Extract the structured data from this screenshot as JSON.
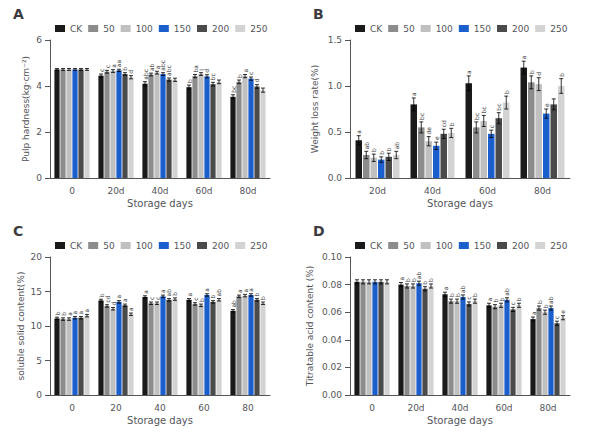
{
  "chart_data": [
    {
      "type": "bar",
      "title": "A",
      "xlabel": "Storage days",
      "ylabel": "Pulp hardness(kg·cm⁻²)",
      "categories": [
        "0",
        "20d",
        "40d",
        "60d",
        "80d"
      ],
      "ylim": [
        0,
        6
      ],
      "yticks": [
        0,
        2,
        4,
        6
      ],
      "grid": false,
      "legend": "top",
      "series": [
        {
          "name": "CK",
          "color": "#1a1a1a",
          "values": [
            4.72,
            4.45,
            4.1,
            3.95,
            3.53
          ],
          "errors": [
            0.04,
            0.07,
            0.09,
            0.09,
            0.09
          ],
          "annotations": [
            null,
            "c",
            "abc",
            "b",
            "bc"
          ]
        },
        {
          "name": "50",
          "color": "#8c8c8c",
          "values": [
            4.72,
            4.62,
            4.5,
            4.43,
            4.18
          ],
          "errors": [
            0.04,
            0.06,
            0.06,
            0.07,
            0.08
          ],
          "annotations": [
            null,
            "c",
            "ab",
            "ba",
            "b"
          ]
        },
        {
          "name": "100",
          "color": "#c0c0c0",
          "values": [
            4.72,
            4.65,
            4.58,
            4.52,
            4.43
          ],
          "errors": [
            0.04,
            0.06,
            0.06,
            0.06,
            0.07
          ],
          "annotations": [
            null,
            "a",
            "a",
            "l",
            "a"
          ]
        },
        {
          "name": "150",
          "color": "#1a5fcc",
          "values": [
            4.72,
            4.68,
            4.52,
            4.42,
            4.32
          ],
          "errors": [
            0.04,
            0.05,
            0.06,
            0.07,
            0.07
          ],
          "annotations": [
            null,
            "aa",
            "abc",
            "d",
            "c"
          ]
        },
        {
          "name": "200",
          "color": "#4a4a4a",
          "values": [
            4.72,
            4.52,
            4.28,
            4.08,
            3.98
          ],
          "errors": [
            0.04,
            0.06,
            0.07,
            0.08,
            0.08
          ],
          "annotations": [
            null,
            "b",
            "abc",
            "bc",
            "d"
          ]
        },
        {
          "name": "250",
          "color": "#d3d3d3",
          "values": [
            4.72,
            4.38,
            4.27,
            4.18,
            3.82
          ],
          "errors": [
            0.04,
            0.07,
            0.07,
            0.08,
            0.09
          ],
          "annotations": [
            null,
            "d",
            null,
            null,
            null
          ]
        }
      ]
    },
    {
      "type": "bar",
      "title": "B",
      "xlabel": "Storage days",
      "ylabel": "Weight loss rate(%)",
      "categories": [
        "20d",
        "40d",
        "60d",
        "80d"
      ],
      "ylim": [
        0.0,
        1.5
      ],
      "yticks": [
        {
          "value": 0,
          "label": "0.0"
        },
        0.5,
        {
          "value": 1,
          "label": "1.0"
        },
        1.5
      ],
      "grid": false,
      "legend": "top",
      "series": [
        {
          "name": "CK",
          "color": "#1a1a1a",
          "values": [
            0.41,
            0.8,
            1.03,
            1.2
          ],
          "errors": [
            0.05,
            0.07,
            0.08,
            0.07
          ],
          "annotations": [
            "a",
            "a",
            "a",
            "a"
          ]
        },
        {
          "name": "50",
          "color": "#8c8c8c",
          "values": [
            0.25,
            0.55,
            0.55,
            1.04
          ],
          "errors": [
            0.04,
            0.06,
            0.06,
            0.07
          ],
          "annotations": [
            "ab",
            "bc",
            "bc",
            "b"
          ]
        },
        {
          "name": "100",
          "color": "#c0c0c0",
          "values": [
            0.22,
            0.4,
            0.62,
            1.02
          ],
          "errors": [
            0.04,
            0.05,
            0.06,
            0.07
          ],
          "annotations": [
            "b",
            "de",
            "bc",
            "d"
          ]
        },
        {
          "name": "150",
          "color": "#1a5fcc",
          "values": [
            0.2,
            0.35,
            0.48,
            0.7
          ],
          "errors": [
            0.03,
            0.04,
            0.04,
            0.05
          ],
          "annotations": [
            "b",
            "e",
            "c",
            "e"
          ]
        },
        {
          "name": "200",
          "color": "#4a4a4a",
          "values": [
            0.23,
            0.48,
            0.65,
            0.8
          ],
          "errors": [
            0.04,
            0.05,
            0.06,
            0.06
          ],
          "annotations": [
            "b",
            "cd",
            "bc",
            null
          ]
        },
        {
          "name": "250",
          "color": "#d3d3d3",
          "values": [
            0.25,
            0.49,
            0.82,
            1.0
          ],
          "errors": [
            0.04,
            0.05,
            0.07,
            0.08
          ],
          "annotations": [
            "ab",
            "b",
            "b",
            "b"
          ]
        }
      ]
    },
    {
      "type": "bar",
      "title": "C",
      "xlabel": "Storage days",
      "ylabel": "soluble solid content(%)",
      "categories": [
        "0",
        "20",
        "40",
        "60",
        "80"
      ],
      "ylim": [
        0,
        20
      ],
      "yticks": [
        0,
        5,
        10,
        15,
        20
      ],
      "grid": false,
      "legend": "top",
      "series": [
        {
          "name": "CK",
          "color": "#1a1a1a",
          "values": [
            11.1,
            13.7,
            14.2,
            13.8,
            12.2
          ],
          "errors": [
            0.18,
            0.18,
            0.18,
            0.18,
            0.18
          ],
          "annotations": [
            "b",
            "b",
            "a",
            "a",
            "ab"
          ]
        },
        {
          "name": "50",
          "color": "#8c8c8c",
          "values": [
            11.0,
            12.9,
            13.3,
            13.2,
            14.3
          ],
          "errors": [
            0.18,
            0.18,
            0.18,
            0.18,
            0.18
          ],
          "annotations": [
            "b",
            "cd",
            "c",
            "c",
            "a"
          ]
        },
        {
          "name": "100",
          "color": "#c0c0c0",
          "values": [
            11.0,
            12.5,
            13.3,
            13.0,
            14.4
          ],
          "errors": [
            0.18,
            0.18,
            0.18,
            0.18,
            0.18
          ],
          "annotations": [
            "a",
            "d",
            "c",
            "b",
            "a"
          ]
        },
        {
          "name": "150",
          "color": "#1a5fcc",
          "values": [
            11.2,
            13.5,
            14.3,
            14.5,
            14.5
          ],
          "errors": [
            0.18,
            0.18,
            0.18,
            0.18,
            0.18
          ],
          "annotations": [
            "a",
            "a",
            "a",
            "a",
            "a"
          ]
        },
        {
          "name": "200",
          "color": "#4a4a4a",
          "values": [
            11.2,
            13.0,
            13.8,
            13.5,
            13.8
          ],
          "errors": [
            0.18,
            0.18,
            0.18,
            0.18,
            0.18
          ],
          "annotations": [
            "a",
            "a",
            "ab",
            "b",
            "b"
          ]
        },
        {
          "name": "250",
          "color": "#d3d3d3",
          "values": [
            11.5,
            11.7,
            13.9,
            13.8,
            13.3
          ],
          "errors": [
            0.18,
            0.18,
            0.18,
            0.18,
            0.18
          ],
          "annotations": [
            "a",
            "a",
            "b",
            "ab",
            "b"
          ]
        }
      ]
    },
    {
      "type": "bar",
      "title": "D",
      "xlabel": "Storage days",
      "ylabel": "Titratable acid content (%)",
      "categories": [
        "0",
        "20d",
        "40d",
        "60d",
        "80d"
      ],
      "ylim": [
        0.0,
        0.1
      ],
      "yticks": [
        {
          "value": 0,
          "label": "0.00"
        },
        0.02,
        0.04,
        0.06,
        0.08,
        {
          "value": 0.1,
          "label": "0.10"
        }
      ],
      "grid": false,
      "legend": "top",
      "series": [
        {
          "name": "CK",
          "color": "#1a1a1a",
          "values": [
            0.082,
            0.08,
            0.073,
            0.065,
            0.055
          ],
          "errors": [
            0.0015,
            0.0015,
            0.0015,
            0.0015,
            0.0015
          ],
          "annotations": [
            null,
            "a",
            "a",
            "a",
            "a"
          ]
        },
        {
          "name": "50",
          "color": "#8c8c8c",
          "values": [
            0.082,
            0.079,
            0.068,
            0.064,
            0.063
          ],
          "errors": [
            0.0015,
            0.0015,
            0.0015,
            0.0015,
            0.0015
          ],
          "annotations": [
            null,
            "b",
            "b",
            "b",
            "b"
          ]
        },
        {
          "name": "100",
          "color": "#c0c0c0",
          "values": [
            0.082,
            0.079,
            0.068,
            0.065,
            0.06
          ],
          "errors": [
            0.0015,
            0.0015,
            0.0015,
            0.0015,
            0.0015
          ],
          "annotations": [
            null,
            "b",
            "b",
            "b",
            "b"
          ]
        },
        {
          "name": "150",
          "color": "#1a5fcc",
          "values": [
            0.082,
            0.081,
            0.071,
            0.069,
            0.063
          ],
          "errors": [
            0.0015,
            0.0015,
            0.0015,
            0.0015,
            0.0015
          ],
          "annotations": [
            null,
            "ab",
            "ab",
            "ab",
            "ab"
          ]
        },
        {
          "name": "200",
          "color": "#4a4a4a",
          "values": [
            0.082,
            0.077,
            0.066,
            0.062,
            0.052
          ],
          "errors": [
            0.0015,
            0.0015,
            0.0015,
            0.0015,
            0.0015
          ],
          "annotations": [
            null,
            "b",
            "c",
            "c",
            "c"
          ]
        },
        {
          "name": "250",
          "color": "#d3d3d3",
          "values": [
            0.082,
            0.079,
            0.068,
            0.065,
            0.056
          ],
          "errors": [
            0.0015,
            0.0015,
            0.0015,
            0.0015,
            0.0015
          ],
          "annotations": [
            null,
            "b",
            "b",
            "b",
            "e"
          ]
        }
      ]
    }
  ]
}
